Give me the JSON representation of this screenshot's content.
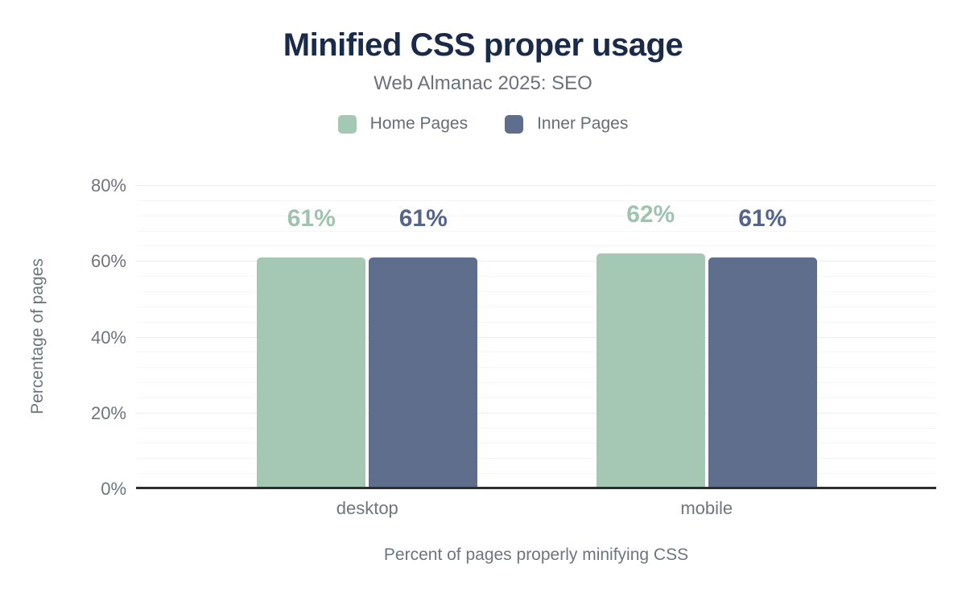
{
  "chart_data": {
    "type": "bar",
    "title": "Minified CSS proper usage",
    "subtitle": "Web Almanac 2025: SEO",
    "categories": [
      "desktop",
      "mobile"
    ],
    "series": [
      {
        "name": "Home Pages",
        "color": "#a4c8b4",
        "label_color": "#9ec4b0",
        "values": [
          61,
          62
        ],
        "labels": [
          "61%",
          "62%"
        ]
      },
      {
        "name": "Inner Pages",
        "color": "#5f6e8c",
        "label_color": "#53658d",
        "values": [
          61,
          61
        ],
        "labels": [
          "61%",
          "61%"
        ]
      }
    ],
    "xlabel": "Percent of pages properly minifying CSS",
    "ylabel": "Percentage of pages",
    "ylim": [
      0,
      80
    ],
    "yticks": [
      0,
      20,
      40,
      60,
      80
    ],
    "ytick_labels": [
      "0%",
      "20%",
      "40%",
      "60%",
      "80%"
    ],
    "grid": "horizontal",
    "minor_grid_step_pct": 4,
    "legend_position": "top-center",
    "colors": {
      "title_text": "#1a2b49",
      "subtitle_text": "#6b717b",
      "muted_text": "#6f747d",
      "legend_text": "#676d76",
      "grid_major": "#ededed",
      "grid_minor": "#f6f6f6",
      "axis_line": "#2e2e2e",
      "background": "#ffffff"
    }
  }
}
